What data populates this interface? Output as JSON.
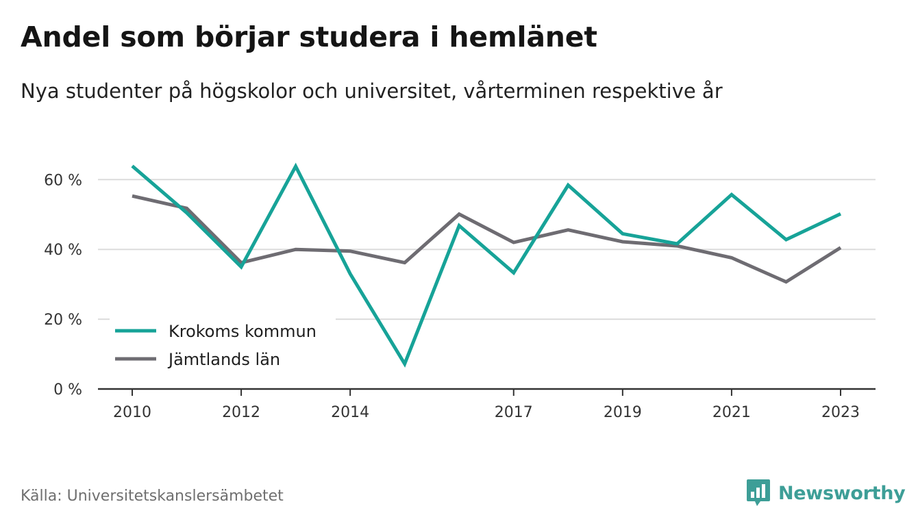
{
  "header": {
    "title": "Andel som börjar studera i hemlänet",
    "subtitle": "Nya studenter på högskolor och universitet, vårterminen respektive år"
  },
  "footer": {
    "source": "Källa: Universitetskanslersämbetet",
    "brand": "Newsworthy",
    "brand_icon": "bar-chart-bubble-icon"
  },
  "colors": {
    "krokom": "#17a398",
    "jamtland": "#6e6c72",
    "grid": "#dcdcdc",
    "axis": "#333333",
    "brand": "#3d9e97"
  },
  "chart_data": {
    "type": "line",
    "x": [
      2010,
      2011,
      2012,
      2013,
      2014,
      2015,
      2016,
      2017,
      2018,
      2019,
      2020,
      2021,
      2022,
      2023
    ],
    "x_ticks": [
      2010,
      2012,
      2014,
      2017,
      2019,
      2021,
      2023
    ],
    "x_tick_labels": [
      "2010",
      "2012",
      "2014",
      "2017",
      "2019",
      "2021",
      "2023"
    ],
    "y_ticks": [
      0,
      20,
      40,
      60
    ],
    "y_tick_labels": [
      "0 %",
      "20 %",
      "40 %",
      "60 %"
    ],
    "ylim": [
      0,
      63
    ],
    "xlim": [
      2010,
      2023
    ],
    "grid": true,
    "legend_position": "bottom-left",
    "series": [
      {
        "name": "Krokoms kommun",
        "color": "#17a398",
        "values": [
          63.9,
          50.5,
          35.0,
          63.8,
          33.0,
          7.2,
          46.8,
          33.3,
          58.4,
          44.5,
          41.6,
          55.7,
          42.8,
          50.2
        ]
      },
      {
        "name": "Jämtlands län",
        "color": "#6e6c72",
        "values": [
          55.3,
          51.8,
          36.2,
          40.0,
          39.5,
          36.2,
          50.1,
          42.0,
          45.6,
          42.2,
          41.0,
          37.6,
          30.7,
          40.5
        ]
      }
    ]
  }
}
